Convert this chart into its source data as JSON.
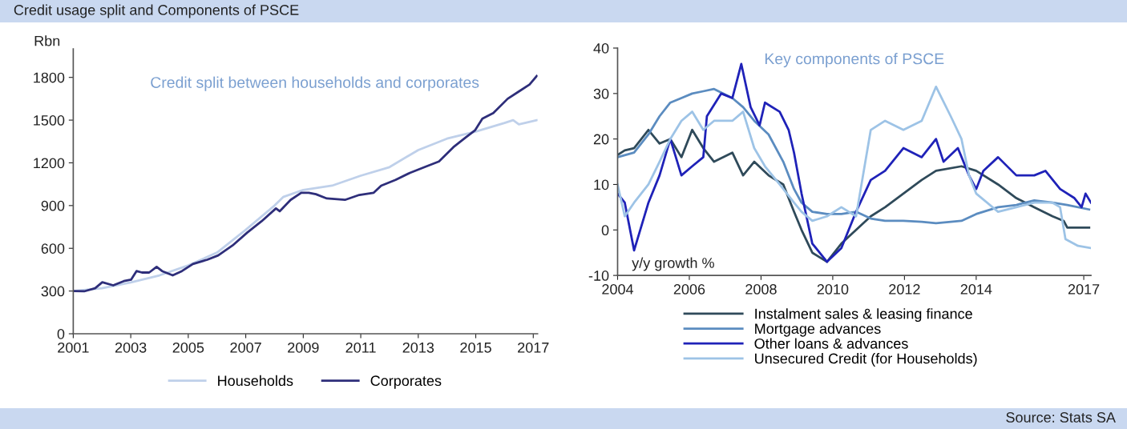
{
  "chart_data": [
    {
      "type": "line",
      "title": "Credit split between households and corporates",
      "ylabel": "Rbn",
      "annotations": [
        "Credit usage split and Components of PSCE"
      ],
      "xlim": [
        2001,
        2017.15
      ],
      "xticks": [
        2001,
        2003,
        2005,
        2007,
        2009,
        2011,
        2013,
        2015,
        2017
      ],
      "ylim": [
        0,
        2000
      ],
      "yticks": [
        0,
        300,
        600,
        900,
        1200,
        1500,
        1800
      ],
      "legend": "bottom",
      "grid": false,
      "series": [
        {
          "name": "Households",
          "color": "#bfd0ea",
          "x": [
            2001,
            2002,
            2003,
            2004,
            2005,
            2006,
            2007,
            2008,
            2008.3,
            2009,
            2010,
            2011,
            2012,
            2013,
            2014,
            2015,
            2016,
            2016.3,
            2016.5,
            2017.12
          ],
          "values": [
            300,
            320,
            360,
            410,
            480,
            570,
            730,
            900,
            960,
            1010,
            1040,
            1110,
            1170,
            1290,
            1370,
            1420,
            1480,
            1500,
            1470,
            1500
          ]
        },
        {
          "name": "Corporates",
          "color": "#2e2e7a",
          "x": [
            2001,
            2001.38,
            2001.76,
            2002.01,
            2002.39,
            2002.76,
            2003.01,
            2003.2,
            2003.39,
            2003.64,
            2003.9,
            2004.09,
            2004.46,
            2004.78,
            2005.16,
            2005.66,
            2006.04,
            2006.54,
            2007.05,
            2007.55,
            2008.05,
            2008.18,
            2008.56,
            2008.93,
            2009.19,
            2009.44,
            2009.82,
            2010.45,
            2010.95,
            2011.45,
            2011.71,
            2012.21,
            2012.71,
            2013.22,
            2013.72,
            2014.22,
            2014.6,
            2014.98,
            2015.23,
            2015.61,
            2016.11,
            2016.49,
            2016.87,
            2017.12
          ],
          "values": [
            300,
            298,
            320,
            362,
            340,
            370,
            380,
            440,
            430,
            430,
            470,
            440,
            410,
            440,
            490,
            520,
            550,
            620,
            710,
            790,
            880,
            860,
            940,
            990,
            990,
            980,
            950,
            940,
            975,
            990,
            1040,
            1080,
            1130,
            1170,
            1210,
            1310,
            1370,
            1430,
            1510,
            1550,
            1650,
            1700,
            1750,
            1810
          ]
        }
      ]
    },
    {
      "type": "line",
      "title": "Key components of PSCE",
      "ylabel": "y/y growth %",
      "annotations": [
        "Source: Stats SA"
      ],
      "xlim": [
        2004,
        2017.2
      ],
      "xticks": [
        2004,
        2006,
        2008,
        2010,
        2012,
        2014,
        2017
      ],
      "ylim": [
        -10,
        40
      ],
      "yticks": [
        -10,
        0,
        10,
        20,
        30,
        40
      ],
      "legend": "bottom",
      "grid": false,
      "series": [
        {
          "name": "Instalment sales & leasing finance",
          "color": "#2f4a5a",
          "x": [
            2004.0,
            2004.2,
            2004.46,
            2004.86,
            2005.17,
            2005.47,
            2005.78,
            2006.08,
            2006.39,
            2006.69,
            2007.2,
            2007.5,
            2007.81,
            2008.21,
            2008.62,
            2008.92,
            2009.13,
            2009.43,
            2009.84,
            2010.24,
            2010.65,
            2011.06,
            2011.46,
            2011.97,
            2012.48,
            2012.88,
            2013.59,
            2014.0,
            2014.61,
            2015.12,
            2015.62,
            2016.13,
            2016.44,
            2016.54,
            2017.15
          ],
          "values": [
            16.5,
            17.5,
            18,
            22,
            19,
            20,
            16,
            22,
            18,
            15,
            17,
            12,
            15,
            12,
            10,
            4,
            0,
            -5,
            -7,
            -3,
            0,
            3,
            5,
            8,
            11,
            13,
            14,
            13,
            10,
            7,
            5,
            3,
            2,
            0.5,
            0.5
          ]
        },
        {
          "name": "Mortgage advances",
          "color": "#5b8cc0",
          "x": [
            2004.0,
            2004.46,
            2004.86,
            2005.17,
            2005.47,
            2005.78,
            2006.08,
            2006.39,
            2006.69,
            2007.2,
            2007.5,
            2007.81,
            2008.21,
            2008.62,
            2008.92,
            2009.13,
            2009.43,
            2009.84,
            2010.24,
            2010.65,
            2011.06,
            2011.46,
            2011.97,
            2012.48,
            2012.88,
            2013.59,
            2014.0,
            2014.61,
            2015.12,
            2015.62,
            2016.13,
            2016.54,
            2017.15
          ],
          "values": [
            16,
            17,
            21,
            25,
            28,
            29,
            30,
            30.5,
            31,
            29,
            27,
            24,
            21,
            15,
            9,
            6,
            4,
            3.5,
            3.5,
            4,
            2.5,
            2,
            2,
            1.8,
            1.5,
            2,
            3.5,
            5,
            5.5,
            6.5,
            6,
            5.5,
            4.5
          ]
        },
        {
          "name": "Other loans & advances",
          "color": "#1f22b8",
          "x": [
            2004.0,
            2004.2,
            2004.46,
            2004.86,
            2005.17,
            2005.47,
            2005.78,
            2006.08,
            2006.39,
            2006.49,
            2006.89,
            2007.2,
            2007.45,
            2007.71,
            2007.96,
            2008.11,
            2008.52,
            2008.77,
            2008.92,
            2009.13,
            2009.43,
            2009.84,
            2010.24,
            2010.65,
            2011.06,
            2011.46,
            2011.97,
            2012.48,
            2012.88,
            2013.09,
            2013.49,
            2013.8,
            2014.0,
            2014.2,
            2014.61,
            2015.12,
            2015.62,
            2015.93,
            2016.34,
            2016.74,
            2016.94,
            2017.05,
            2017.2
          ],
          "values": [
            8,
            6,
            -4.5,
            6,
            12,
            20,
            12,
            14,
            16,
            25,
            30,
            29,
            36.5,
            27,
            23,
            28,
            26,
            22,
            17,
            8,
            -3,
            -7,
            -4,
            4,
            11,
            13,
            18,
            16,
            20,
            15,
            18,
            12,
            9,
            13,
            16,
            12,
            12,
            13,
            9,
            7,
            5,
            8,
            6
          ]
        },
        {
          "name": "Unsecured Credit (for Households)",
          "color": "#9dc3e6",
          "x": [
            2004.0,
            2004.2,
            2004.46,
            2004.86,
            2005.17,
            2005.47,
            2005.78,
            2006.08,
            2006.39,
            2006.69,
            2007.2,
            2007.5,
            2007.81,
            2008.11,
            2008.52,
            2008.92,
            2009.13,
            2009.43,
            2009.84,
            2010.24,
            2010.65,
            2011.06,
            2011.46,
            2011.97,
            2012.48,
            2012.88,
            2013.29,
            2013.59,
            2013.8,
            2014.0,
            2014.61,
            2015.12,
            2015.62,
            2016.13,
            2016.34,
            2016.49,
            2016.84,
            2017.2
          ],
          "values": [
            10,
            3,
            6,
            10,
            15,
            20,
            24,
            26,
            22,
            24,
            24,
            26,
            18,
            14,
            10,
            6,
            4,
            2,
            3,
            5,
            3,
            22,
            24,
            22,
            24,
            31.5,
            25,
            20,
            12,
            8,
            4,
            5,
            6,
            6,
            5,
            -2,
            -3.5,
            -4
          ]
        }
      ]
    }
  ]
}
